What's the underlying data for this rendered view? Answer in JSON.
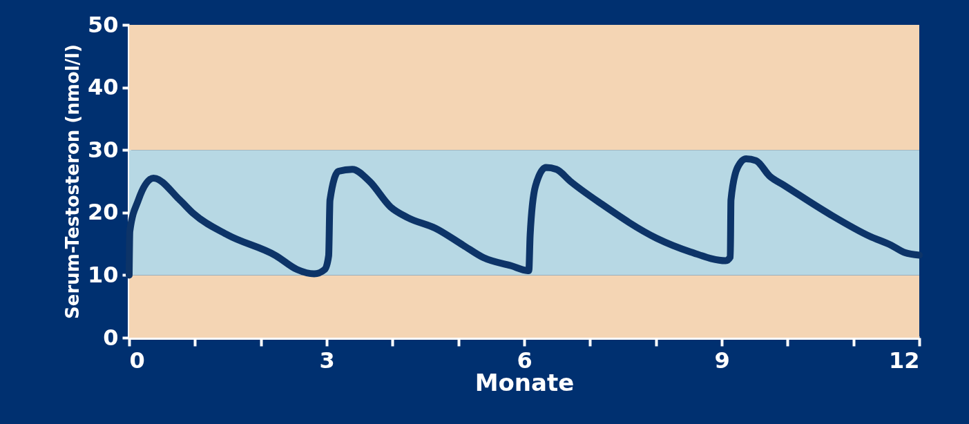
{
  "chart_data": {
    "type": "line",
    "xlabel": "Monate",
    "ylabel": "Serum-Testosteron (nmol/l)",
    "x": [
      0,
      0.01,
      0.14,
      0.37,
      0.77,
      0.98,
      1.5,
      2.23,
      2.55,
      2.81,
      2.97,
      3.03,
      3.05,
      3.18,
      3.39,
      3.65,
      3.97,
      4.23,
      4.65,
      5.07,
      5.38,
      5.8,
      6.07,
      6.09,
      6.17,
      6.33,
      6.49,
      6.7,
      7.17,
      8.01,
      8.53,
      9.06,
      9.13,
      9.14,
      9.24,
      9.37,
      9.52,
      9.73,
      9.94,
      10.63,
      11.25,
      11.57,
      11.78,
      12
    ],
    "series": [
      {
        "color": "#0d3468",
        "values": [
          10,
          17,
          22,
          25.5,
          22,
          19.8,
          16.4,
          13.1,
          10.9,
          10.2,
          10.9,
          13.1,
          22,
          26.6,
          26.9,
          25,
          20.9,
          19.2,
          17.5,
          14.8,
          12.8,
          11.5,
          10.7,
          16.4,
          24.2,
          27.2,
          26.9,
          25,
          21.4,
          15.9,
          13.7,
          12.3,
          12.9,
          22,
          27.2,
          28.6,
          28.3,
          25.8,
          24.4,
          19.8,
          16.2,
          14.8,
          13.6,
          13.2
        ]
      }
    ],
    "xlim": [
      0,
      12
    ],
    "xticks": [
      0,
      {
        "value": 1,
        "label": null
      },
      {
        "value": 2,
        "label": null
      },
      3,
      {
        "value": 4,
        "label": null
      },
      {
        "value": 5,
        "label": null
      },
      6,
      {
        "value": 7,
        "label": null
      },
      {
        "value": 8,
        "label": null
      },
      9,
      {
        "value": 10,
        "label": null
      },
      {
        "value": 11,
        "label": null
      },
      12
    ],
    "ylim": [
      0,
      50
    ],
    "yticks": [
      0,
      10,
      20,
      30,
      40,
      50
    ],
    "bands": [
      {
        "axis": "y",
        "from": 0,
        "to": 10,
        "color": "#f4d5b4"
      },
      {
        "axis": "y",
        "from": 10,
        "to": 30,
        "color": "#b7d8e4"
      },
      {
        "axis": "y",
        "from": 30,
        "to": 50,
        "color": "#f4d5b4"
      }
    ],
    "grid": false,
    "line_style": "solid"
  }
}
